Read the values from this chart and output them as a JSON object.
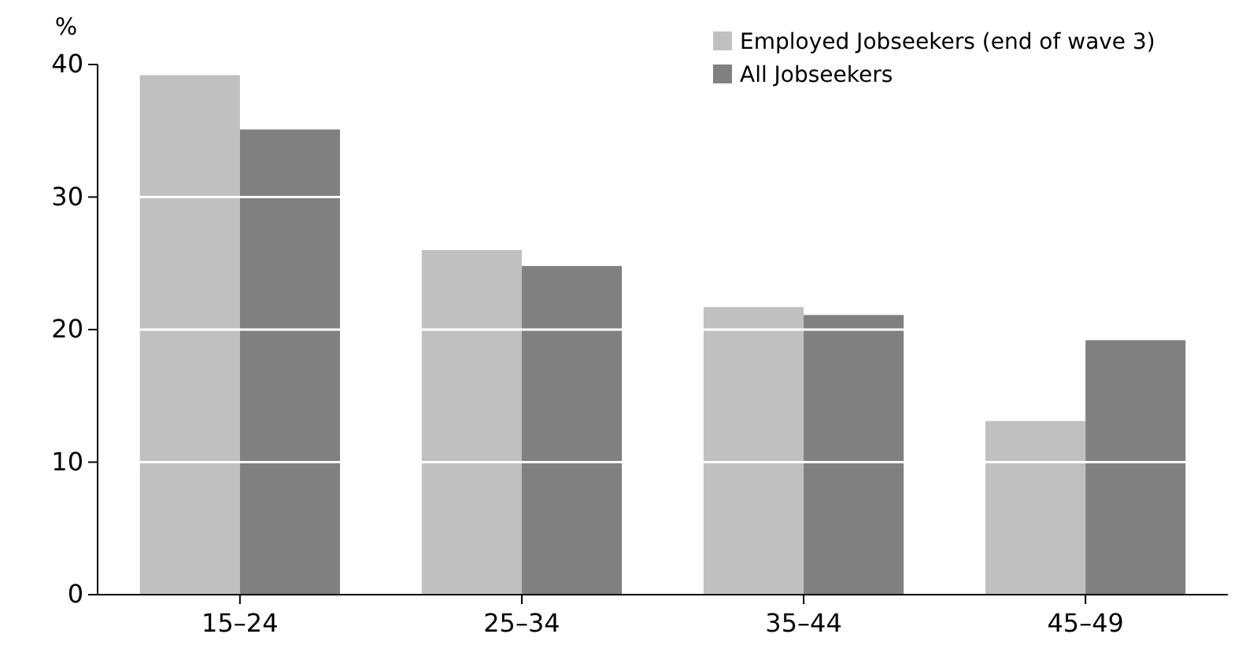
{
  "chart_data": {
    "type": "bar",
    "ylabel": "%",
    "categories": [
      "15–24",
      "25–34",
      "35–44",
      "45–49"
    ],
    "series": [
      {
        "name": "Employed Jobseekers (end of wave 3)",
        "color": "#c0c0c0",
        "values": [
          39.2,
          26.0,
          21.7,
          13.1
        ]
      },
      {
        "name": "All Jobseekers",
        "color": "#808080",
        "values": [
          35.1,
          24.8,
          21.1,
          19.2
        ]
      }
    ],
    "ylim": [
      0,
      40
    ],
    "yticks": [
      0,
      10,
      20,
      30,
      40
    ],
    "grid": "y",
    "legend": "top right"
  }
}
